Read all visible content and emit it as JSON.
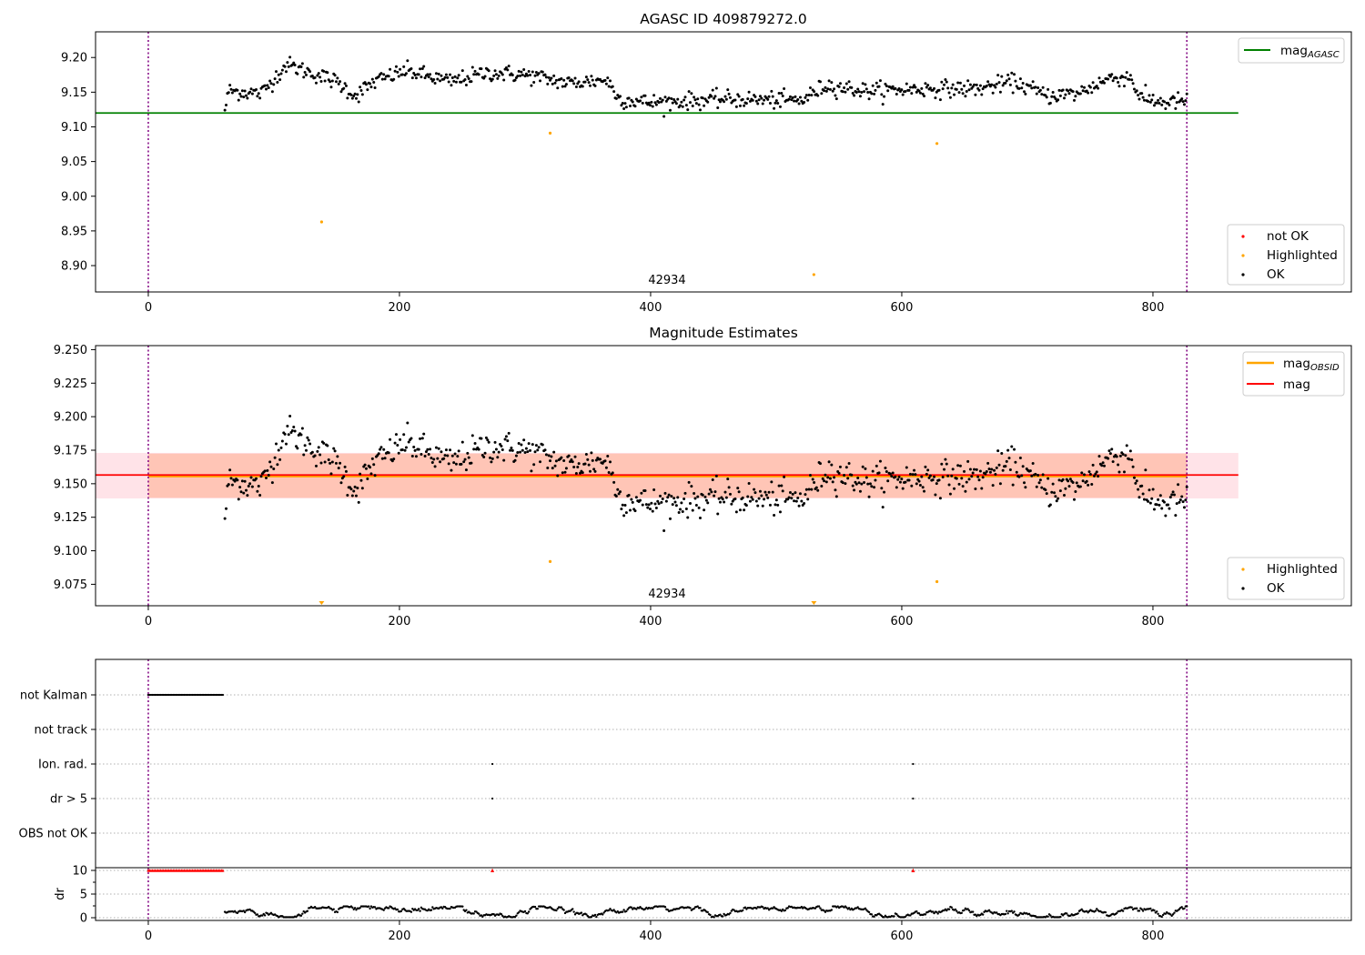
{
  "figure": {
    "title": "AGASC ID 409879272.0",
    "obsid_label": "42934"
  },
  "chart_data": [
    {
      "type": "scatter",
      "title": "AGASC ID 409879272.0",
      "xlabel": "",
      "ylabel": "",
      "xlim": [
        -42,
        958
      ],
      "ylim": [
        8.862,
        9.237
      ],
      "xticks": [
        0,
        200,
        400,
        600,
        800
      ],
      "yticks": [
        8.9,
        8.95,
        9.0,
        9.05,
        9.1,
        9.15,
        9.2
      ],
      "ytick_labels": [
        "8.90",
        "8.95",
        "9.00",
        "9.05",
        "9.10",
        "9.15",
        "9.20"
      ],
      "obsid_vlines": [
        0,
        827
      ],
      "reference_line": {
        "name": "mag_AGASC",
        "y": 9.12,
        "x_end": 868,
        "color": "#008000"
      },
      "series": [
        {
          "name": "OK",
          "color": "#000000",
          "n_points": 770,
          "x_range": [
            61,
            827
          ],
          "trend_knots": [
            [
              61,
              9.124
            ],
            [
              64,
              9.152
            ],
            [
              90,
              9.148
            ],
            [
              110,
              9.19
            ],
            [
              150,
              9.165
            ],
            [
              165,
              9.145
            ],
            [
              180,
              9.165
            ],
            [
              205,
              9.181
            ],
            [
              240,
              9.165
            ],
            [
              270,
              9.178
            ],
            [
              300,
              9.175
            ],
            [
              335,
              9.163
            ],
            [
              365,
              9.168
            ],
            [
              375,
              9.14
            ],
            [
              400,
              9.135
            ],
            [
              460,
              9.14
            ],
            [
              520,
              9.138
            ],
            [
              540,
              9.16
            ],
            [
              570,
              9.152
            ],
            [
              620,
              9.155
            ],
            [
              660,
              9.155
            ],
            [
              690,
              9.165
            ],
            [
              715,
              9.145
            ],
            [
              740,
              9.148
            ],
            [
              765,
              9.17
            ],
            [
              782,
              9.172
            ],
            [
              790,
              9.142
            ],
            [
              810,
              9.135
            ],
            [
              827,
              9.138
            ]
          ],
          "scatter": 0.008
        },
        {
          "name": "Highlighted",
          "color": "#ffa500",
          "points": [
            [
              138,
              8.963
            ],
            [
              320,
              9.091
            ],
            [
              530,
              8.887
            ],
            [
              628,
              9.076
            ]
          ]
        },
        {
          "name": "not OK",
          "color": "#ff0000",
          "points": []
        }
      ],
      "legend_upper": [
        "mag_AGASC"
      ],
      "legend_lower": [
        "not OK",
        "Highlighted",
        "OK"
      ]
    },
    {
      "type": "scatter",
      "title": "Magnitude Estimates",
      "xlabel": "",
      "ylabel": "",
      "xlim": [
        -42,
        958
      ],
      "ylim": [
        9.059,
        9.253
      ],
      "xticks": [
        0,
        200,
        400,
        600,
        800
      ],
      "yticks": [
        9.075,
        9.1,
        9.125,
        9.15,
        9.175,
        9.2,
        9.225,
        9.25
      ],
      "ytick_labels": [
        "9.075",
        "9.100",
        "9.125",
        "9.150",
        "9.175",
        "9.200",
        "9.225",
        "9.250"
      ],
      "obsid_vlines": [
        0,
        827
      ],
      "mag_line": {
        "name": "mag",
        "y": 9.1565,
        "band": [
          9.139,
          9.173
        ],
        "x_start": -42,
        "x_end": 868,
        "color": "#ff0000",
        "band_color": "#ffc0cb"
      },
      "mag_obsid_line": {
        "name": "mag_OBSID",
        "y": 9.1555,
        "band": [
          9.1395,
          9.1725
        ],
        "x_start": 0,
        "x_end": 827,
        "color": "#ffa500",
        "band_color": "#ffa07a"
      },
      "series": [
        {
          "name": "OK",
          "color": "#000000",
          "source": "same as panel 1 OK points"
        },
        {
          "name": "Highlighted",
          "color": "#ffa500",
          "points": [
            [
              320,
              9.092
            ],
            [
              628,
              9.077
            ]
          ],
          "below_range": [
            138,
            530
          ]
        }
      ],
      "legend_upper": [
        "mag_OBSID",
        "mag"
      ],
      "legend_lower": [
        "Highlighted",
        "OK"
      ]
    },
    {
      "type": "scatter",
      "title": "",
      "xlim": [
        -42,
        958
      ],
      "xticks": [
        0,
        200,
        400,
        600,
        800
      ],
      "obsid_vlines": [
        0,
        827
      ],
      "flag_rows": [
        "not Kalman",
        "not track",
        "Ion. rad.",
        "dr > 5",
        "OBS not OK"
      ],
      "flags": {
        "not Kalman": {
          "x_range": [
            0,
            60
          ]
        },
        "not track": {
          "points": []
        },
        "Ion. rad.": {
          "points": [
            274,
            609
          ]
        },
        "dr > 5": {
          "points": [
            274,
            609
          ]
        },
        "OBS not OK": {
          "points": []
        }
      },
      "dr_panel": {
        "ylabel": "dr",
        "yticks": [
          0,
          5,
          10
        ],
        "ytick_labels": [
          "0",
          "5",
          "10"
        ],
        "ylim": [
          -0.5,
          10.5
        ],
        "clipped_value": 10,
        "clipped_points": {
          "x_range": [
            0,
            60
          ],
          "extra": [
            274,
            609
          ]
        },
        "typical_range": [
          0,
          2.5
        ]
      }
    }
  ]
}
